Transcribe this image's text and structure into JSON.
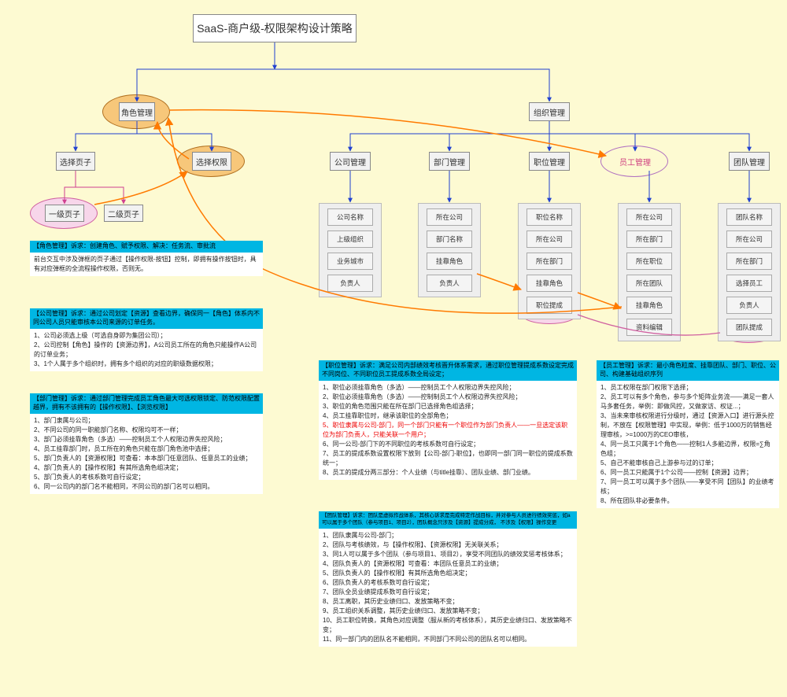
{
  "bg": "#fdfad2",
  "root": {
    "label": "SaaS-商户级-权限架构设计策略"
  },
  "nodes": {
    "role_mgmt": "角色管理",
    "org_mgmt": "组织管理",
    "select_page": "选择页子",
    "select_perm": "选择权限",
    "page1": "一级页子",
    "page2": "二级页子",
    "company_mgmt": "公司管理",
    "dept_mgmt": "部门管理",
    "position_mgmt": "职位管理",
    "employee_mgmt": "员工管理",
    "team_mgmt": "团队管理",
    "hang_role": "挂靠角色",
    "post_upgrade": "职位提成",
    "team_upgrade": "团队提成"
  },
  "cards": {
    "company": [
      "公司名称",
      "上级组织",
      "业务城市",
      "负责人"
    ],
    "dept": [
      "所在公司",
      "部门名称",
      "挂靠角色",
      "负责人"
    ],
    "position": [
      "职位名称",
      "所在公司",
      "所在部门",
      "挂靠角色",
      "职位提成"
    ],
    "employee": [
      "所在公司",
      "所在部门",
      "所在职位",
      "所在团队",
      "挂靠角色",
      "资料编辑"
    ],
    "team": [
      "团队名称",
      "所在公司",
      "所在部门",
      "选择员工",
      "负责人",
      "团队提成"
    ]
  },
  "colors": {
    "blue": "#2040d0",
    "orange": "#ff7a00",
    "pink_fill": "#f7d6ea",
    "pink_stroke": "#d060a0",
    "orange_fill": "#f7c77a",
    "orange_stroke": "#b07020",
    "violet_stroke": "#b070c0",
    "box_border": "#888888",
    "red_text": "#ee0000"
  },
  "panels": {
    "role": {
      "hdr": "【角色管理】诉求：创建角色、赋予权限、解决：任务流、审批流",
      "body": [
        "前台交互中涉及弹框的页子通过【操作权限-按钮】控制，即拥有操作按钮时，具有对应弹框的全流程操作权限，否则无。"
      ]
    },
    "company": {
      "hdr": "【公司管理】诉求：通过公司划定【资源】查看边界，确保同一【角色】体系内不同公司人员只能审核本公司来源的订单任务。",
      "body": [
        "1、公司必须选上级（可选自身即为集团公司）；",
        "2、公司控制【角色】操作的【资源边界】，A公司员工所在的角色只能操作A公司的订单业务；",
        "3、1个人属于多个组织时，拥有多个组织的对应的职级数据权限；"
      ]
    },
    "dept": {
      "hdr": "【部门管理】诉求：通过部门管理完成员工角色最大可选权限锁定、防范权限配置越界，拥有不该拥有的【操作权限】、【浏览权限】",
      "body": [
        "1、部门隶属与公司；",
        "2、不同公司的同一职能部门名称、权限均可不一样；",
        "3、部门必须挂靠角色（多选）——控制员工个人权限边界失控风险；",
        "4、员工挂靠部门时，员工所在的角色只能在部门角色池中选择；",
        "5、部门负责人的【资源权限】可查看：本本部门任意团队、任意员工的业绩；",
        "4、部门负责人的【操作权限】有其所选角色组决定；",
        "5、部门负责人的考核系数可自行设定；",
        "6、同一公司内的部门名不能相同，不同公司的部门名可以相同。"
      ]
    },
    "position": {
      "hdr": "【职位管理】诉求：满足公司内部绩效考核晋升体系需求，通过职位管理提成系数设定完成不同岗位、不同职位员工提成系数全局设定；",
      "body": [
        "1、职位必须挂靠角色（多选）——控制员工个人权限边界失控风险；",
        "2、职位必须挂靠角色（多选）——控制制员工个人权限边界失控风险；",
        "3、职位的角色范围只能在所在部门已选择角色组选择；",
        "4、员工挂靠职位时，继承该职位的全部角色；",
        "<red>5、职位隶属与公司-部门，同一个部门只能有一个职位作为部门负责人——一旦选定该职位为部门负责人，只能关联一个用户；</red>",
        "6、同一公司-部门下的不同职位的考核系数可自行设定；",
        "7、员工的提成系数设置权限下放到【公司-部门-职位】，也即同一部门同一职位的提成系数统一；",
        "8、员工的提成分两三部分：个人业绩（与title挂靠）、团队业绩、部门业绩。"
      ]
    },
    "team": {
      "hdr": "【团队管理】诉求：团队是虚拟作战体系，其核心诉求是完成特定作战目标，并对参与人员进行绩效奖惩，如a可以属于多个团队（参与项目1、项目2），团队概念只涉及【资源】提成分成，\n不涉及【权限】操作变更",
      "body": [
        "1、团队隶属与公司-部门；",
        "2、团队与考核绩效，与【操作权限】、【资源权限】无关联关系；",
        "3、同1人可以属于多个团队（参与项目1、项目2），享受不同团队的绩效奖惩考核体系；",
        "4、团队负责人的【资源权限】可查看：本团队任意员工的业绩；",
        "5、团队负责人的【操作权限】有其所选角色组决定；",
        "6、团队负责人的考核系数可自行设定；",
        "7、团队全员业绩提成系数可自行设定；",
        "8、员工离职，其历史业绩归口、发放策略不变；",
        "9、员工组织关系调整，其历史业绩归口、发放策略不变；",
        "10、员工职位转换，其角色对应调整（服从新的考核体系），其历史业绩归口、发放策略不变；",
        "11、同一部门内的团队名不能相同，不同部门不同公司的团队名可以相同。"
      ]
    },
    "employee": {
      "hdr": "【员工管理】诉求：最小角色粒度、挂靠团队、部门、职位、公司、构建基础组织序列",
      "body": [
        "1、员工权限在部门权限下选择；",
        "2、员工可以有多个角色，参与多个矩阵业务流——满足一套人马多套任务，举例：即做风控，又做家访、权证...；",
        "3、当未来审核权限进行分级时，通过【资源入口】进行源头控制，不放在【权限管理】中实现，举例：低于1000万的销售经理审核，>=1000万的CEO审核，",
        "4、同一员工只属于1个角色——控制1人多能边界，权限=∑角色组；",
        "5、自己不能审核自己上游参与过的订单；",
        "6、同一员工只能属于1个公司——控制【资源】边界；",
        "7、同一员工可以属于多个团队——享受不同【团队】的业绩考核；",
        "8、所在团队非必要条件。"
      ]
    }
  }
}
